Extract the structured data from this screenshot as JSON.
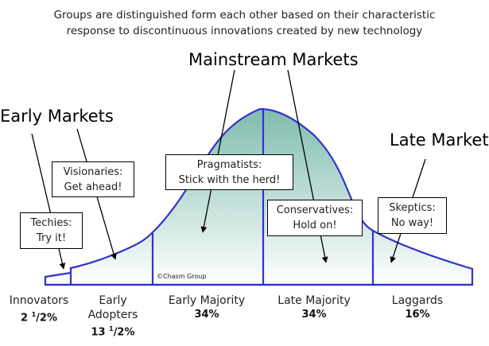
{
  "subtitle_lines": [
    "Groups are distinguished form each other based on their characteristic",
    "response to discontinuous innovations created by new technology"
  ],
  "market_labels": {
    "early": "Early Markets",
    "mainstream": "Mainstream Markets",
    "late": "Late Market"
  },
  "callouts": [
    {
      "line1": "Techies:",
      "line2": "Try it!"
    },
    {
      "line1": "Visionaries:",
      "line2": "Get ahead!"
    },
    {
      "line1": "Pragmatists:",
      "line2": "Stick with the herd!"
    },
    {
      "line1": "Conservatives:",
      "line2": "Hold on!"
    },
    {
      "line1": "Skeptics:",
      "line2": "No way!"
    }
  ],
  "segments": [
    {
      "name": "Innovators",
      "pct_whole": "2",
      "pct_frac": "1",
      "pct_rest": "/2%"
    },
    {
      "name": "Early Adopters",
      "pct_whole": "13",
      "pct_frac": "1",
      "pct_rest": "/2%"
    },
    {
      "name": "Early Majority",
      "pct_whole": "34%",
      "pct_frac": "",
      "pct_rest": ""
    },
    {
      "name": "Late Majority",
      "pct_whole": "34%",
      "pct_frac": "",
      "pct_rest": ""
    },
    {
      "name": "Laggards",
      "pct_whole": "16%",
      "pct_frac": "",
      "pct_rest": ""
    }
  ],
  "copyright": "©Chasm Group",
  "colors": {
    "curve_stroke": "#3333cc",
    "fill_top": "#7fbcae",
    "fill_bottom": "#ffffff"
  }
}
